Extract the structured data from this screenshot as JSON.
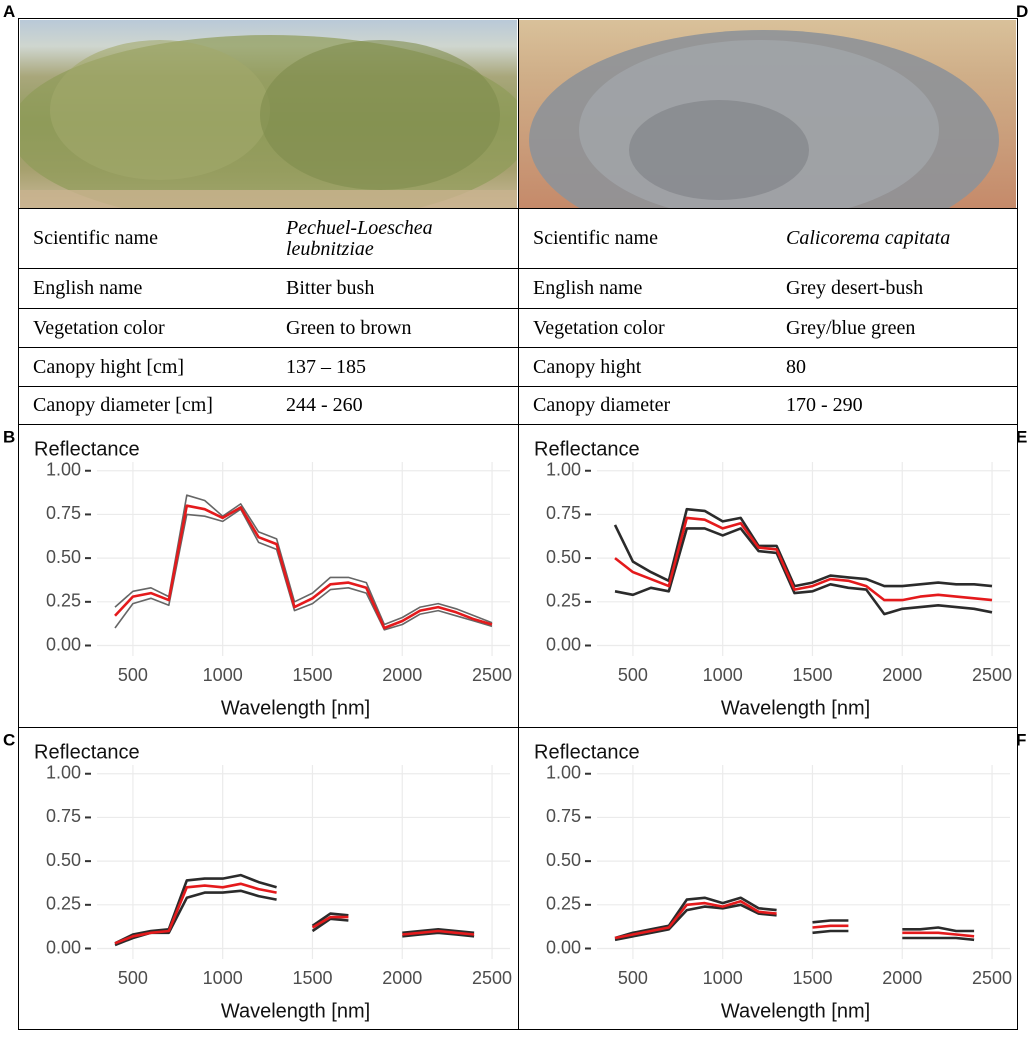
{
  "tables": [
    {
      "label": "A",
      "rows": [
        [
          "Scientific name",
          "Pechuel-Loeschea leubnitziae"
        ],
        [
          "English name",
          "Bitter bush"
        ],
        [
          "Vegetation color",
          "Green to brown"
        ],
        [
          "Canopy hight [cm]",
          "137 – 185"
        ],
        [
          "Canopy diameter [cm]",
          "244 - 260"
        ]
      ]
    },
    {
      "label": "D",
      "rows": [
        [
          "Scientific name",
          "Calicorema capitata"
        ],
        [
          "English name",
          "Grey desert-bush"
        ],
        [
          "Vegetation color",
          "Grey/blue green"
        ],
        [
          "Canopy hight",
          "80"
        ],
        [
          "Canopy diameter",
          "170 - 290"
        ]
      ]
    }
  ],
  "chart_data": [
    {
      "type": "line",
      "label": "B",
      "ylabel": "Reflectance",
      "xlabel": "Wavelength [nm]",
      "x": [
        400,
        500,
        600,
        700,
        800,
        900,
        1000,
        1100,
        1200,
        1300,
        1400,
        1500,
        1600,
        1700,
        1800,
        1900,
        2000,
        2100,
        2200,
        2300,
        2400,
        2500
      ],
      "xlim": [
        300,
        2600
      ],
      "xticks": [
        500,
        1000,
        1500,
        2000,
        2500
      ],
      "ylim": [
        -0.06,
        1.05
      ],
      "yticks": [
        {
          "value": 0,
          "label": "0.00"
        },
        {
          "value": 0.25,
          "label": "0.25"
        },
        {
          "value": 0.5,
          "label": "0.50"
        },
        {
          "value": 0.75,
          "label": "0.75"
        },
        {
          "value": 1,
          "label": "1.00"
        }
      ],
      "grid": true,
      "series": [
        {
          "color": "#666666",
          "values": [
            0.22,
            0.31,
            0.33,
            0.28,
            0.86,
            0.83,
            0.74,
            0.81,
            0.65,
            0.61,
            0.25,
            0.3,
            0.39,
            0.39,
            0.36,
            0.12,
            0.16,
            0.22,
            0.24,
            0.21,
            0.17,
            0.13
          ]
        },
        {
          "color": "#666666",
          "values": [
            0.1,
            0.24,
            0.27,
            0.23,
            0.75,
            0.74,
            0.71,
            0.78,
            0.59,
            0.55,
            0.2,
            0.24,
            0.32,
            0.33,
            0.3,
            0.09,
            0.12,
            0.18,
            0.2,
            0.17,
            0.14,
            0.11
          ]
        },
        {
          "color": "#e41a1c",
          "values": [
            0.17,
            0.28,
            0.3,
            0.26,
            0.8,
            0.78,
            0.73,
            0.79,
            0.62,
            0.58,
            0.22,
            0.27,
            0.35,
            0.36,
            0.33,
            0.1,
            0.14,
            0.2,
            0.22,
            0.19,
            0.15,
            0.12
          ]
        }
      ]
    },
    {
      "type": "line",
      "label": "E",
      "ylabel": "Reflectance",
      "xlabel": "Wavelength [nm]",
      "x": [
        400,
        500,
        600,
        700,
        800,
        900,
        1000,
        1100,
        1200,
        1300,
        1400,
        1500,
        1600,
        1700,
        1800,
        1900,
        2000,
        2100,
        2200,
        2300,
        2400,
        2500
      ],
      "xlim": [
        300,
        2600
      ],
      "xticks": [
        500,
        1000,
        1500,
        2000,
        2500
      ],
      "ylim": [
        -0.06,
        1.05
      ],
      "yticks": [
        {
          "value": 0,
          "label": "0.00"
        },
        {
          "value": 0.25,
          "label": "0.25"
        },
        {
          "value": 0.5,
          "label": "0.50"
        },
        {
          "value": 0.75,
          "label": "0.75"
        },
        {
          "value": 1,
          "label": "1.00"
        }
      ],
      "grid": true,
      "series": [
        {
          "color": "#2b2b2b",
          "values": [
            0.69,
            0.48,
            0.42,
            0.37,
            0.78,
            0.77,
            0.71,
            0.73,
            0.57,
            0.57,
            0.34,
            0.36,
            0.4,
            0.39,
            0.38,
            0.34,
            0.34,
            0.35,
            0.36,
            0.35,
            0.35,
            0.34
          ]
        },
        {
          "color": "#2b2b2b",
          "values": [
            0.31,
            0.29,
            0.33,
            0.31,
            0.67,
            0.67,
            0.63,
            0.67,
            0.54,
            0.53,
            0.3,
            0.31,
            0.35,
            0.33,
            0.32,
            0.18,
            0.21,
            0.22,
            0.23,
            0.22,
            0.21,
            0.19
          ]
        },
        {
          "color": "#e41a1c",
          "values": [
            0.5,
            0.42,
            0.38,
            0.34,
            0.73,
            0.72,
            0.67,
            0.7,
            0.56,
            0.55,
            0.32,
            0.34,
            0.38,
            0.37,
            0.34,
            0.26,
            0.26,
            0.28,
            0.29,
            0.28,
            0.27,
            0.26
          ]
        }
      ]
    },
    {
      "type": "line",
      "label": "C",
      "ylabel": "Reflectance",
      "xlabel": "Wavelength [nm]",
      "x": [
        400,
        500,
        600,
        700,
        800,
        900,
        1000,
        1100,
        1200,
        1300,
        1400,
        1500,
        1600,
        1700,
        1800,
        1900,
        2000,
        2100,
        2200,
        2300,
        2400,
        2500
      ],
      "xlim": [
        300,
        2600
      ],
      "xticks": [
        500,
        1000,
        1500,
        2000,
        2500
      ],
      "ylim": [
        -0.06,
        1.05
      ],
      "yticks": [
        {
          "value": 0,
          "label": "0.00"
        },
        {
          "value": 0.25,
          "label": "0.25"
        },
        {
          "value": 0.5,
          "label": "0.50"
        },
        {
          "value": 0.75,
          "label": "0.75"
        },
        {
          "value": 1,
          "label": "1.00"
        }
      ],
      "grid": true,
      "series": [
        {
          "color": "#2b2b2b",
          "values": [
            0.03,
            0.08,
            0.1,
            0.11,
            0.39,
            0.4,
            0.4,
            0.42,
            0.38,
            0.35,
            null,
            0.13,
            0.2,
            0.19,
            null,
            null,
            0.09,
            0.1,
            0.11,
            0.1,
            0.09,
            null
          ]
        },
        {
          "color": "#2b2b2b",
          "values": [
            0.02,
            0.06,
            0.09,
            0.09,
            0.29,
            0.32,
            0.32,
            0.33,
            0.3,
            0.28,
            null,
            0.1,
            0.17,
            0.16,
            null,
            null,
            0.07,
            0.08,
            0.09,
            0.08,
            0.07,
            null
          ]
        },
        {
          "color": "#e41a1c",
          "values": [
            0.03,
            0.07,
            0.09,
            0.1,
            0.35,
            0.36,
            0.35,
            0.37,
            0.34,
            0.32,
            null,
            0.12,
            0.18,
            0.18,
            null,
            null,
            0.08,
            0.09,
            0.1,
            0.09,
            0.08,
            null
          ]
        }
      ]
    },
    {
      "type": "line",
      "label": "F",
      "ylabel": "Reflectance",
      "xlabel": "Wavelength [nm]",
      "x": [
        400,
        500,
        600,
        700,
        800,
        900,
        1000,
        1100,
        1200,
        1300,
        1400,
        1500,
        1600,
        1700,
        1800,
        1900,
        2000,
        2100,
        2200,
        2300,
        2400,
        2500
      ],
      "xlim": [
        300,
        2600
      ],
      "xticks": [
        500,
        1000,
        1500,
        2000,
        2500
      ],
      "ylim": [
        -0.06,
        1.05
      ],
      "yticks": [
        {
          "value": 0,
          "label": "0.00"
        },
        {
          "value": 0.25,
          "label": "0.25"
        },
        {
          "value": 0.5,
          "label": "0.50"
        },
        {
          "value": 0.75,
          "label": "0.75"
        },
        {
          "value": 1,
          "label": "1.00"
        }
      ],
      "grid": true,
      "series": [
        {
          "color": "#2b2b2b",
          "values": [
            0.06,
            0.09,
            0.11,
            0.13,
            0.28,
            0.29,
            0.26,
            0.29,
            0.23,
            0.22,
            null,
            0.15,
            0.16,
            0.16,
            null,
            null,
            0.11,
            0.11,
            0.12,
            0.1,
            0.1,
            null
          ]
        },
        {
          "color": "#2b2b2b",
          "values": [
            0.05,
            0.07,
            0.09,
            0.11,
            0.22,
            0.24,
            0.23,
            0.25,
            0.2,
            0.19,
            null,
            0.09,
            0.1,
            0.1,
            null,
            null,
            0.06,
            0.06,
            0.06,
            0.06,
            0.05,
            null
          ]
        },
        {
          "color": "#e41a1c",
          "values": [
            0.06,
            0.08,
            0.1,
            0.12,
            0.25,
            0.26,
            0.24,
            0.27,
            0.21,
            0.2,
            null,
            0.12,
            0.13,
            0.13,
            null,
            null,
            0.09,
            0.09,
            0.09,
            0.08,
            0.07,
            null
          ]
        }
      ]
    }
  ]
}
